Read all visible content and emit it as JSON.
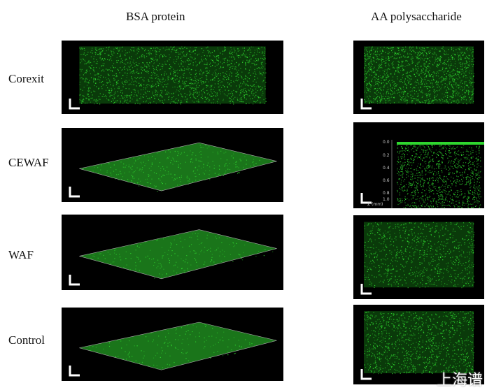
{
  "columns": [
    "BSA protein",
    "AA polysaccharide"
  ],
  "rows": [
    "Corexit",
    "CEWAF",
    "WAF",
    "Control"
  ],
  "colors": {
    "fluorescence": "#2fd62f",
    "background": "#000000"
  },
  "axis": {
    "ticks": [
      "0.0",
      "0.2",
      "0.4",
      "0.6",
      "0.8",
      "1.0"
    ],
    "label": "Z (mm)"
  },
  "watermark": "上海谱"
}
